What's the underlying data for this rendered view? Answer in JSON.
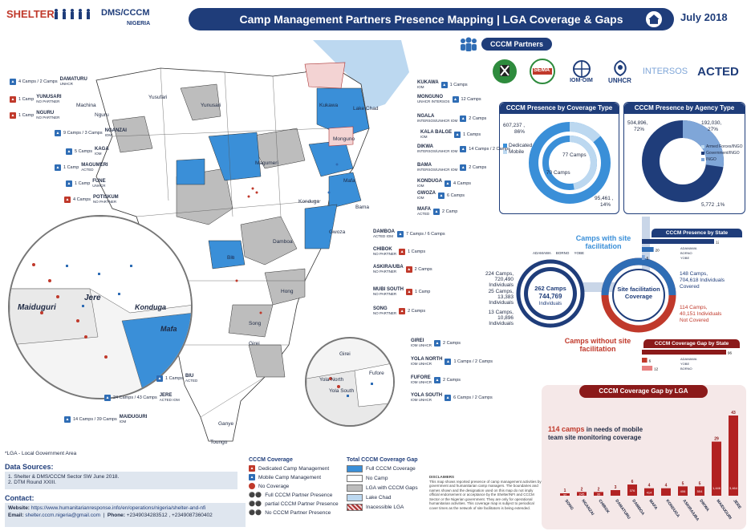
{
  "header": {
    "logo_shelter": "SHELTER",
    "logo_dms": "DMS/CCCM",
    "logo_nigeria": "NIGERIA",
    "title": "Camp Management Partners Presence Mapping | LGA Coverage & Gaps",
    "date": "July 2018"
  },
  "partners": {
    "title": "CCCM Partners",
    "logos": [
      "SEMA",
      "IOM·OIM",
      "UNHCR",
      "INTERSOS",
      "ACTED"
    ]
  },
  "lgas_left": [
    {
      "name": "DAMATURU",
      "camps": "4 Camps",
      "camps2": "2 Camps",
      "partner": "UNHCR"
    },
    {
      "name": "YUNUSARI",
      "camps": "1 Camp",
      "partner": "NO PARTNER"
    },
    {
      "name": "NGURU",
      "camps": "1 Camp",
      "partner": "NO PARTNER"
    },
    {
      "name": "NGANZAI",
      "camps": "9 Camps",
      "camps2": "3 Camps",
      "partner": "IOM"
    },
    {
      "name": "KAGA",
      "camps": "5 Camps",
      "partner": "IOM"
    },
    {
      "name": "MAGUMERI",
      "camps": "1 Camp",
      "partner": "ACTED"
    },
    {
      "name": "FUNE",
      "camps": "1 Camp",
      "partner": "UNHCR"
    },
    {
      "name": "POTISKUM",
      "camps": "4 Camps",
      "partner": "NO PARTNER"
    },
    {
      "name": "BIU",
      "camps": "1 Camps",
      "partner": "ACTED"
    },
    {
      "name": "JERE",
      "camps": "24 Camps",
      "camps2": "43 Camps",
      "partner": "ACTED IOM"
    },
    {
      "name": "MAIDUGURI",
      "camps": "14 Camps",
      "camps2": "39 Camps",
      "partner": "IOM"
    }
  ],
  "lgas_right": [
    {
      "name": "KUKAWA",
      "camps": "1 Camps",
      "partner": "IOM"
    },
    {
      "name": "MONGUNO",
      "camps": "12 Camps",
      "partner": "UNHCR INTERSOS"
    },
    {
      "name": "NGALA",
      "camps": "2 Camps",
      "partner": "INTERSOS/UNHCR IOM"
    },
    {
      "name": "KALA BALGE",
      "camps": "1 Camps",
      "partner": "IOM"
    },
    {
      "name": "DIKWA",
      "camps": "14 Camps",
      "camps2": "2 Camps",
      "partner": "INTERSOS/UNHCR IOM"
    },
    {
      "name": "BAMA",
      "camps": "2 Camps",
      "partner": "INTERSOS/UNHCR IOM"
    },
    {
      "name": "KONDUGA",
      "camps": "4 Camps",
      "partner": "IOM"
    },
    {
      "name": "GWOZA",
      "camps": "6 Camps",
      "partner": "IOM"
    },
    {
      "name": "MAFA",
      "camps": "2 Camp",
      "partner": "ACTED"
    },
    {
      "name": "DAMBOA",
      "camps": "7 Camps",
      "camps2": "6 Camps",
      "partner": "ACTED IOM"
    },
    {
      "name": "CHIBOK",
      "camps": "1 Camps",
      "partner": "NO PARTNER"
    },
    {
      "name": "ASKIRA/UBA",
      "camps": "2 Camps",
      "partner": "NO PARTNER"
    },
    {
      "name": "MUBI SOUTH",
      "camps": "1 Camp",
      "partner": "NO PARTNER"
    },
    {
      "name": "SONG",
      "camps": "2 Camps",
      "partner": "NO PARTNER"
    },
    {
      "name": "GIREI",
      "camps": "2 Camps",
      "partner": "IOM UNHCR"
    },
    {
      "name": "YOLA NORTH",
      "camps": "1 Camps",
      "camps2": "2 Camps",
      "partner": "IOM UNHCR"
    },
    {
      "name": "FUFORE",
      "camps": "2 Camps",
      "partner": "IOM UNHCR"
    },
    {
      "name": "YOLA SOUTH",
      "camps": "6 Camps",
      "camps2": "2 Camps",
      "partner": "IOM UNHCR"
    }
  ],
  "map_labels": [
    "Machina",
    "Yusufari",
    "Yunusari",
    "Nguru",
    "Bade",
    "Bursari",
    "Geidam",
    "Mobbur",
    "Kukawa",
    "Lake Chad",
    "Guzamala",
    "Gubio",
    "Marte",
    "Monguno",
    "Ngala",
    "Nganzai",
    "Magumeri",
    "Kala/Balge",
    "Dikwa",
    "Mafa",
    "Bama",
    "Konduga",
    "Jere",
    "Kaga",
    "Gujba",
    "Fune",
    "Tarmua",
    "Damaturu",
    "Fika",
    "Gulani",
    "Biu",
    "Damboa",
    "Gwoza",
    "Chibok",
    "Askira/Uba",
    "Madagali",
    "Michika",
    "Hawul",
    "Kwaya Kusar",
    "Bayo",
    "Shani",
    "Mubi North",
    "Mubi South",
    "Hong",
    "Gombi",
    "Maiha",
    "Song",
    "Girei",
    "Yola North",
    "Yola South",
    "Fufore",
    "Guyuk",
    "Lamurde",
    "Numan",
    "Demsa",
    "Mayo-Belwa",
    "Jada",
    "Ganye",
    "Toungo",
    "Shelleng",
    "Karim-Lamido",
    "Potiskum",
    "Jakusko",
    "Bursari"
  ],
  "inset_labels": [
    "Maiduguri",
    "Jere",
    "Konduga",
    "Mafa"
  ],
  "inset2_labels": [
    "Girei",
    "Yola North",
    "Yola South",
    "Fufore"
  ],
  "footnote": "*LGA - Local Government Area",
  "data_sources": {
    "title": "Data Sources:",
    "lines": [
      "1. Shelter & DMS/CCCM Sector SW June 2018.",
      "2. DTM Round XXIII."
    ]
  },
  "contact": {
    "title": "Contact:",
    "website_label": "Website:",
    "website": "https://www.humanitarianresponse.info/en/operations/nigeria/shelter-and-nfi",
    "email_label": "Email:",
    "email": "shelter.cccm.nigeria@gmail.com",
    "phone_label": "Phone:",
    "phone": "+2349034283512 , +2349087360402"
  },
  "legend": {
    "coverage_title": "CCCM Coverage",
    "coverage_items": [
      "Dedicated Camp Management",
      "Mobile Camp Management",
      "No Coverage"
    ],
    "presence_items": [
      "Full CCCM Partner Presence",
      "partial CCCM Partner Presence",
      "No CCCM Partner Presence"
    ],
    "gap_title": "Total CCCM Coverage Gap",
    "gap_items": [
      "Full CCCM Coverage",
      "No Camp",
      "LGA with CCCM Gaps",
      "Lake Chad",
      "Inacessible LGA"
    ],
    "disclaimer_title": "DISCLAIMERS",
    "disclaimer": "This map shows reported presence of camp management activities by government and humanitarian camp managers. The boundaries and names shown and the designation used on this map do not imply official endorsement or acceptance by the Shelter/NFI and CCCM Sector or the Nigerian government. They are only for operational humanitarian activities. This coverage map is subject to periodical cover times as the network of site facilitators is being extended."
  },
  "coverage_type": {
    "title": "CCCM Presence by Coverage Type",
    "dedicated_label": "Dedicated",
    "mobile_label": "Mobile",
    "dedicated_value": "607,237 ,",
    "dedicated_pct": "86%",
    "mobile_value": "95,461 ,",
    "mobile_pct": "14%",
    "inner_outer": "77 Camps",
    "inner_inner": "70 Camps"
  },
  "agency_type": {
    "title": "CCCM Presence by Agency Type",
    "v1": "504,896,",
    "p1": "72%",
    "v2": "192,030,",
    "p2": "27%",
    "v3": "5,772 ,1%",
    "legend": [
      "Armed Forces/INGO",
      "Government/INGO",
      "INGO"
    ]
  },
  "chart_data": [
    {
      "type": "pie",
      "title": "CCCM Presence by Coverage Type",
      "series": [
        {
          "name": "Dedicated",
          "value": 607237
        },
        {
          "name": "Mobile",
          "value": 95461
        }
      ]
    },
    {
      "type": "pie",
      "title": "CCCM Presence by Agency Type",
      "series": [
        {
          "name": "Armed Forces/INGO",
          "value": 5772
        },
        {
          "name": "Government/INGO",
          "value": 504896
        },
        {
          "name": "INGO",
          "value": 192030
        }
      ]
    },
    {
      "type": "bar",
      "title": "CCCM Presence by State",
      "categories": [
        "BORNO",
        "ADAMAWA",
        "YOBE"
      ],
      "values": [
        123,
        20,
        5
      ]
    },
    {
      "type": "bar",
      "title": "CCCM Coverage Gap by State",
      "categories": [
        "BORNO",
        "ADAMAWA",
        "YOBE"
      ],
      "values": [
        96,
        6,
        12
      ]
    },
    {
      "type": "bar",
      "title": "CCCM Coverage Gap by LGA",
      "categories": [
        "SONG",
        "NGANZAI",
        "CHIBOK",
        "DAMATURU",
        "DAMBOA",
        "MAFA",
        "KONDUGA",
        "ASKIRA/UBA",
        "DIKWA",
        "MAIDUGURI",
        "JERE"
      ],
      "values": [
        1,
        2,
        2,
        3,
        6,
        4,
        4,
        5,
        5,
        29,
        43
      ],
      "bar_labels": [
        "32",
        "245",
        "30",
        "",
        "376",
        "414",
        "",
        "406",
        "504",
        "1,446",
        "3,464"
      ]
    }
  ],
  "site_fac": {
    "with_title": "Camps with site facilitation",
    "without_title": "Camps without site facilitation",
    "center": "Site facilitation Coverage",
    "total_camps": "262 Camps",
    "total_ind": "744,769",
    "total_ind_label": "Individuals",
    "legend": [
      "ADAMAWA",
      "BORNO",
      "YOBE"
    ],
    "left_items": [
      {
        "camps": "224 Camps,",
        "ind": "720,490 Individuals"
      },
      {
        "camps": "25 Camps,",
        "ind": "13,383 Individuals"
      },
      {
        "camps": "13 Camps,",
        "ind": "10,896 Individuals"
      }
    ],
    "covered_camps": "148 Camps,",
    "covered_ind": "704,618 Individuals",
    "covered_label": "Covered",
    "notcov_camps": "114 Camps,",
    "notcov_ind": "40,151 Individuals",
    "notcov_label": "Not Covered",
    "presence_state_title": "CCCM Presence by State",
    "presence_state_labels": [
      "ADAMAWA",
      "BORNO",
      "YOBE"
    ],
    "gap_state_title": "CCCM Coverage Gap by State",
    "gap_state_labels": [
      "ADAMAWA",
      "YOBE",
      "BORNO"
    ]
  },
  "gap_lga": {
    "title": "CCCM Coverage Gap by LGA",
    "headline_num": "114 camps",
    "headline_rest": "in needs of mobile team site monitoring coverage"
  }
}
